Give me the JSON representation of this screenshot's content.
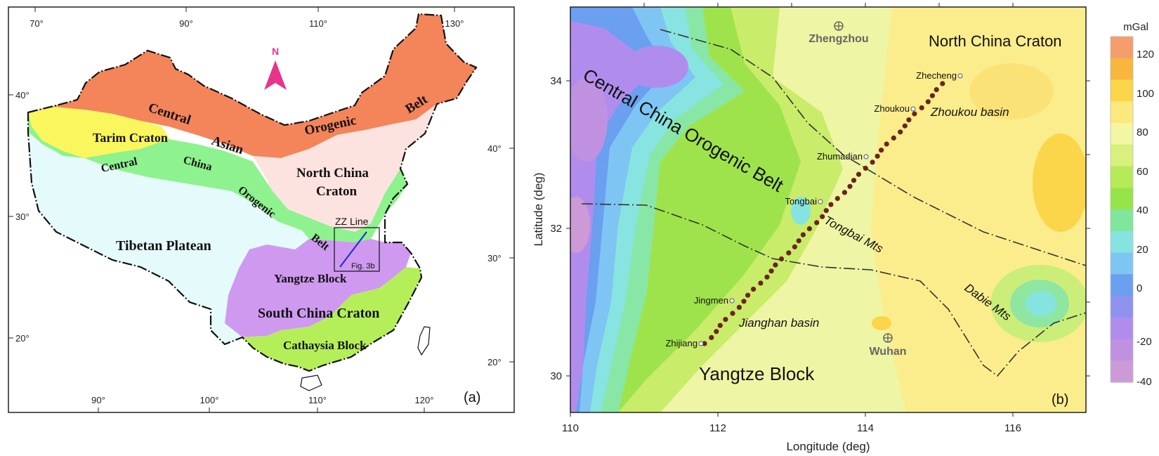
{
  "panel_a": {
    "label": "(a)",
    "lon_ticks_top": [
      "70°",
      "90°",
      "110°",
      "130°"
    ],
    "lon_ticks_bottom": [
      "90°",
      "100°",
      "110°",
      "120°"
    ],
    "lat_ticks_left": [
      "40°",
      "30°",
      "20°"
    ],
    "lat_ticks_right": [
      "40°",
      "30°",
      "20°"
    ],
    "north_label": "N",
    "regions": {
      "central_asian_belt": [
        "Central",
        "Asian",
        "Orogenic",
        "Belt"
      ],
      "tarim_craton": "Tarim Craton",
      "central_china_belt": [
        "Central",
        "China",
        "Orogenic",
        "Belt"
      ],
      "north_china_craton": [
        "North China",
        "Craton"
      ],
      "tibetan_plateau": "Tibetan Platean",
      "yangtze_block": "Yangtze Block",
      "south_china_craton": "South China Craton",
      "cathaysia_block": "Cathaysia Block"
    },
    "inset_line_label": "ZZ Line",
    "inset_fig_label": "Fig. 3b",
    "colors": {
      "central_asian": "#f4845a",
      "tarim": "#faf75e",
      "central_china": "#8ef28f",
      "north_china": "#fde3df",
      "tibet": "#e5fbfb",
      "yangtze": "#cf99f0",
      "cathaysia": "#b4ef5a"
    }
  },
  "panel_b": {
    "label": "(b)",
    "x_axis_title": "Longitude (deg)",
    "y_axis_title": "Latitude (deg)",
    "x_ticks": [
      "110",
      "112",
      "114",
      "116"
    ],
    "y_ticks": [
      "34",
      "32",
      "30"
    ],
    "regions": {
      "north_china_craton": "North China Craton",
      "central_china_belt": "Central China Orogenic Belt",
      "yangtze_block": "Yangtze Block"
    },
    "features": {
      "zhoukou_basin": "Zhoukou basin",
      "tongbai_mts": "Tongbai Mts",
      "jianghan_basin": "Jianghan basin",
      "dabie_mts": "Dabie Mts"
    },
    "cities": {
      "zhengzhou": "Zhengzhou",
      "wuhan": "Wuhan"
    },
    "stations": [
      "Zhecheng",
      "Zhoukou",
      "Zhumadian",
      "Tongbai",
      "Jingmen",
      "Zhijiang"
    ]
  },
  "colorbar": {
    "unit": "mGal",
    "ticks": [
      "120",
      "100",
      "80",
      "60",
      "40",
      "20",
      "0",
      "-20",
      "-40"
    ],
    "colors": [
      "#f59d6b",
      "#f9b63c",
      "#fbd54a",
      "#fbe97e",
      "#f3f6a2",
      "#d8f07c",
      "#b6ea59",
      "#97e44a",
      "#80e69b",
      "#86e4e0",
      "#7ec5f3",
      "#6b9ff0",
      "#8f92ef",
      "#b08ded",
      "#c191e1",
      "#cc9bd7"
    ]
  }
}
